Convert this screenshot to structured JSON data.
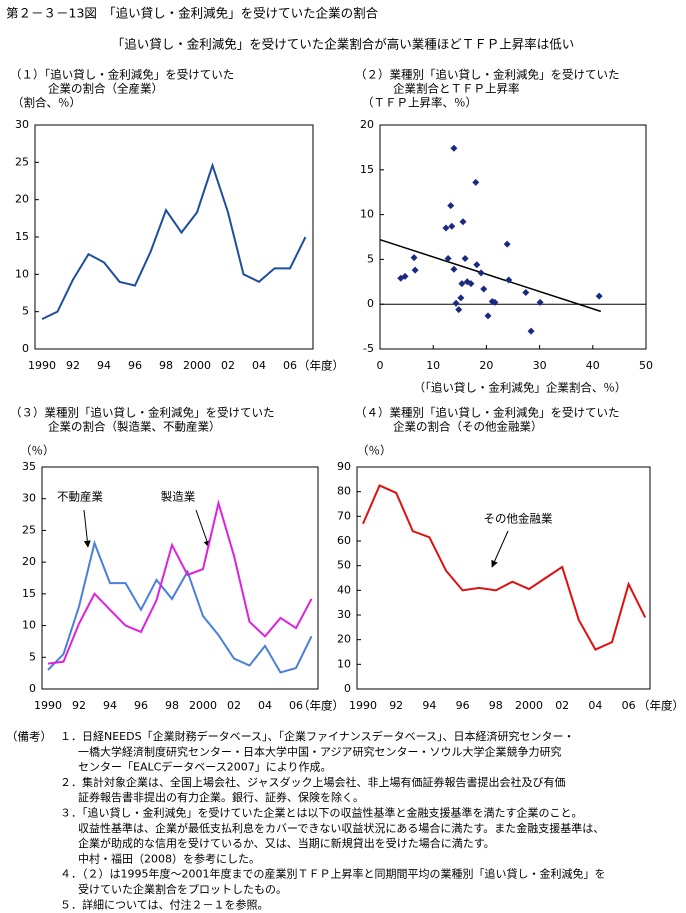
{
  "title": "第２－３－13図　「追い貸し・金利減免」を受けていた企業の割合",
  "subtitle": "「追い貸し・金利減免」を受けていた企業割合が高い業種ほどＴＦＰ上昇率は低い",
  "notes_label": "（備考）",
  "notes": [
    [
      "１．日経NEEDS「企業財務データベース」、「企業ファイナンスデータベース」、日本経済研究センター・",
      "一橋大学経済制度研究センター・日本大学中国・アジア研究センター・ソウル大学企業競争力研究",
      "センター「EALCデータベース2007」により作成。"
    ],
    [
      "２．集計対象企業は、全国上場会社、ジャスダック上場会社、非上場有価証券報告書提出会社及び有価",
      "証券報告書非提出の有力企業。銀行、証券、保険を除く。"
    ],
    [
      "３．「追い貸し・金利減免」を受けていた企業とは以下の収益性基準と金融支援基準を満たす企業のこと。",
      "収益性基準は、企業が最低支払利息をカバーできない収益状況にある場合に満たす。また金融支援基準は、",
      "企業が助成的な信用を受けているか、又は、当期に新規貸出を受けた場合に満たす。",
      "中村・福田（2008）を参考にした。"
    ],
    [
      "４．（２）は1995年度～2001年度までの産業別ＴＦＰ上昇率と同期間平均の業種別「追い貸し・金利減免」を",
      "受けていた企業割合をプロットしたもの。"
    ],
    [
      "５．詳細については、付注２－１を参照。"
    ]
  ],
  "chart_data": [
    {
      "type": "line",
      "title": [
        "（１）「追い貸し・金利減免」を受けていた",
        "企業の割合（全産業）"
      ],
      "ylabel": "（割合、％）",
      "xlabel": "（年度）",
      "categories": [
        "1990",
        null,
        "92",
        null,
        "94",
        null,
        "96",
        null,
        "98",
        null,
        "2000",
        null,
        "02",
        null,
        "04",
        null,
        "06",
        null
      ],
      "values": [
        4.0,
        5.0,
        9.3,
        12.7,
        11.6,
        9.0,
        8.5,
        13.0,
        18.6,
        15.6,
        18.3,
        24.6,
        18.3,
        10.0,
        9.0,
        10.8,
        10.8,
        15.0
      ],
      "color": "#1f4e9e",
      "ylim": [
        0,
        30
      ],
      "yticks": [
        0,
        5,
        10,
        15,
        20,
        25,
        30
      ]
    },
    {
      "type": "scatter",
      "title": [
        "（２）業種別「追い貸し・金利減免」を受けていた",
        "企業割合とＴＦＰ上昇率"
      ],
      "ylabel": "（ＴＦＰ上昇率、％）",
      "xlabel": "（「追い貸し・金利減免」企業割合、％）",
      "x": [
        3.9,
        4.7,
        6.4,
        6.6,
        12.4,
        12.8,
        13.3,
        13.5,
        13.9,
        13.9,
        14.3,
        14.8,
        15.2,
        15.4,
        15.6,
        16.0,
        16.4,
        17.1,
        18.0,
        18.2,
        19.0,
        19.5,
        20.3,
        21.1,
        21.6,
        23.9,
        24.2,
        27.4,
        28.4,
        30.1,
        41.2
      ],
      "y": [
        2.9,
        3.1,
        5.2,
        3.8,
        8.5,
        5.1,
        11.0,
        8.7,
        17.4,
        3.9,
        0.1,
        -0.6,
        0.7,
        2.3,
        9.2,
        5.1,
        2.5,
        2.3,
        13.6,
        4.4,
        3.5,
        1.7,
        -1.3,
        0.3,
        0.2,
        6.7,
        2.7,
        1.3,
        -3.0,
        0.2,
        0.9
      ],
      "color": "#1a2a80",
      "xlim": [
        0,
        50
      ],
      "xticks": [
        0,
        10,
        20,
        30,
        40,
        50
      ],
      "ylim": [
        -5,
        20
      ],
      "yticks": [
        -5,
        0,
        5,
        10,
        15,
        20
      ],
      "hline": 0,
      "trend_line": {
        "x": [
          0,
          41.5
        ],
        "y": [
          7.2,
          -0.8
        ]
      }
    },
    {
      "type": "line",
      "title": [
        "（３）業種別「追い貸し・金利減免」を受けていた",
        "企業の割合（製造業、不動産業）"
      ],
      "ylabel": "（％）",
      "xlabel": "（年度）",
      "categories": [
        "1990",
        null,
        "92",
        null,
        "94",
        null,
        "96",
        null,
        "98",
        null,
        "2000",
        null,
        "02",
        null,
        "04",
        null,
        "06",
        null
      ],
      "series": [
        {
          "name": "不動産業",
          "color": "#4a7fdc",
          "values": [
            3.0,
            5.5,
            13.0,
            23.0,
            16.7,
            16.7,
            12.5,
            17.2,
            14.2,
            18.5,
            11.5,
            8.5,
            4.8,
            3.7,
            6.8,
            2.6,
            3.3,
            8.3
          ]
        },
        {
          "name": "製造業",
          "color": "#e020e0",
          "values": [
            4.0,
            4.3,
            10.3,
            15.0,
            12.5,
            10.0,
            9.0,
            14.0,
            22.7,
            18.0,
            18.9,
            29.3,
            21.0,
            10.6,
            8.3,
            11.2,
            9.6,
            14.2
          ]
        }
      ],
      "ylim": [
        0,
        35
      ],
      "yticks": [
        0,
        5,
        10,
        15,
        20,
        25,
        30,
        35
      ]
    },
    {
      "type": "line",
      "title": [
        "（４）業種別「追い貸し・金利減免」を受けていた",
        "企業の割合（その他金融業）"
      ],
      "ylabel": "（％）",
      "xlabel": "（年度）",
      "categories": [
        "1990",
        null,
        "92",
        null,
        "94",
        null,
        "96",
        null,
        "98",
        null,
        "2000",
        null,
        "02",
        null,
        "04",
        null,
        "06",
        null
      ],
      "series": [
        {
          "name": "その他金融業",
          "color": "#e01010",
          "values": [
            67,
            82.5,
            79.5,
            64,
            61.5,
            48,
            40,
            41,
            40,
            43.5,
            40.5,
            45,
            49.5,
            28,
            16,
            19,
            42.5,
            29
          ]
        }
      ],
      "ylim": [
        0,
        90
      ],
      "yticks": [
        0,
        10,
        20,
        30,
        40,
        50,
        60,
        70,
        80,
        90
      ]
    }
  ]
}
